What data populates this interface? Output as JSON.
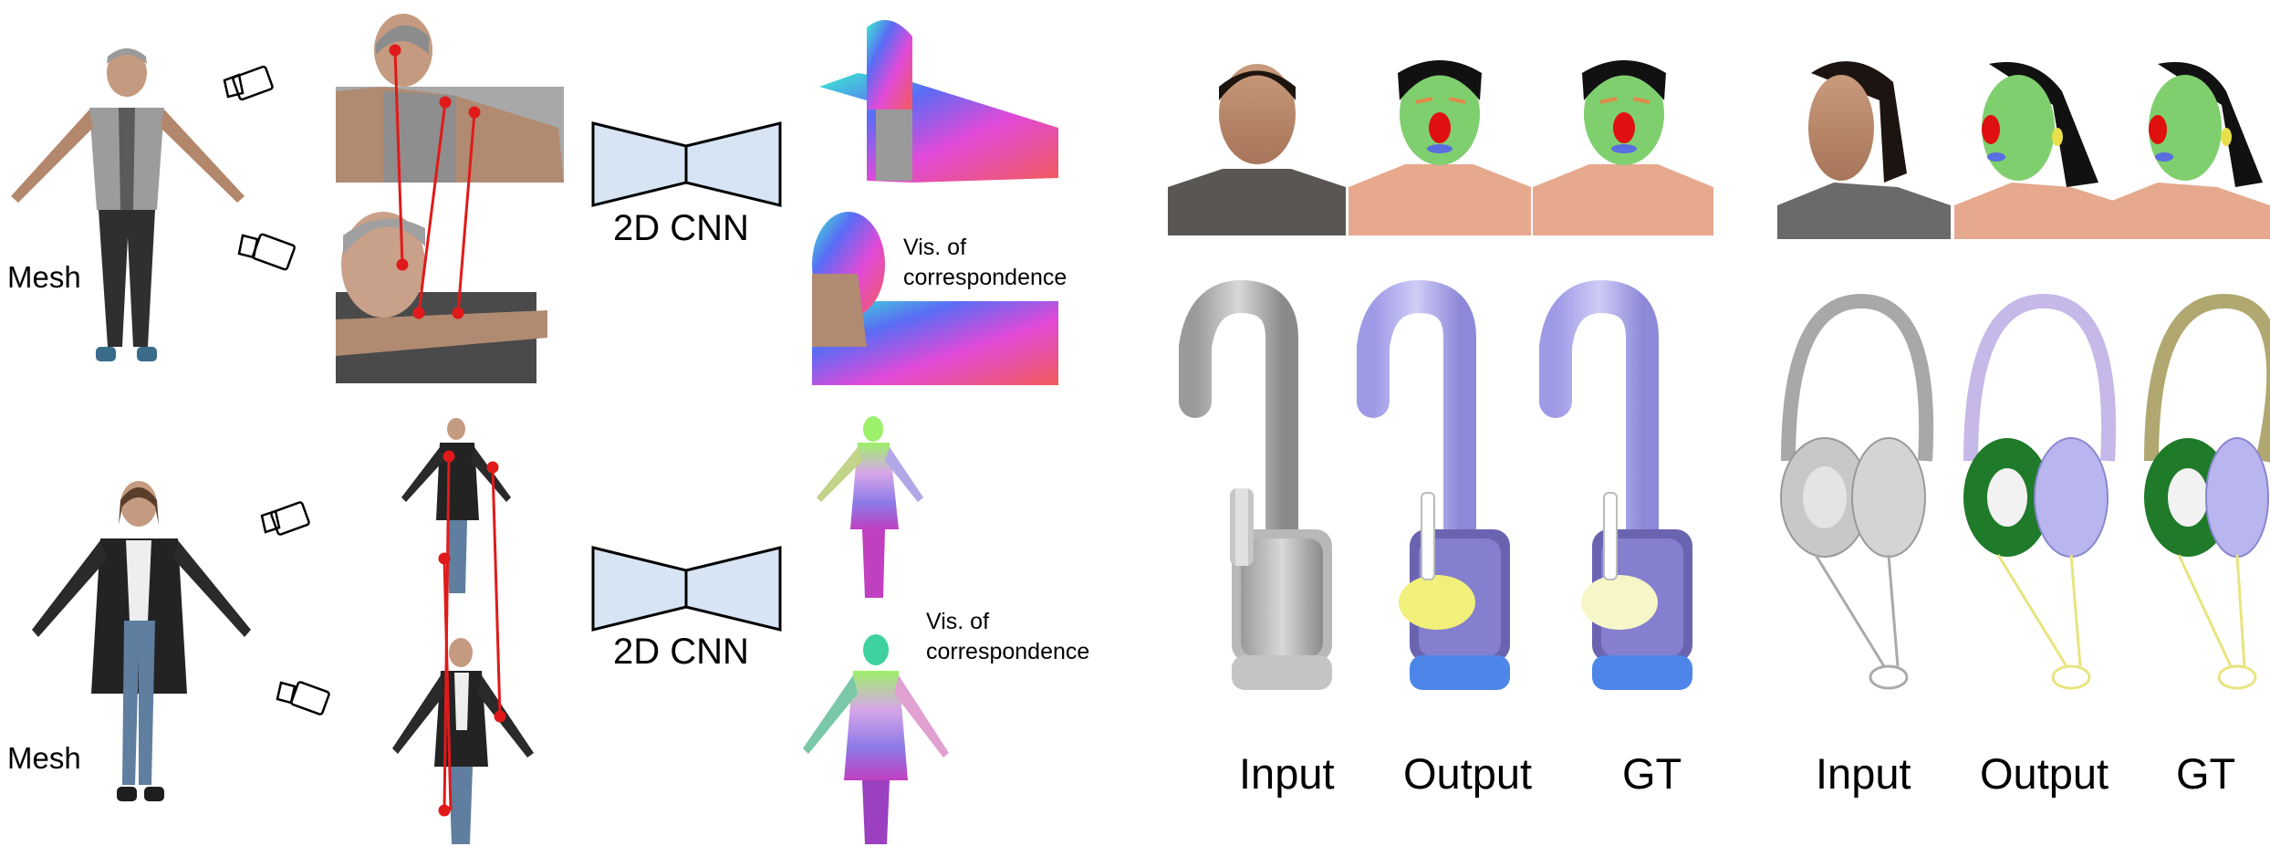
{
  "left_panel": {
    "row1": {
      "mesh_label": "Mesh",
      "network_label": "2D CNN",
      "vis_label": "Vis. of correspondence"
    },
    "row2": {
      "mesh_label": "Mesh",
      "network_label": "2D CNN",
      "vis_label": "Vis. of correspondence"
    }
  },
  "right_panel": {
    "group1": {
      "column_labels": [
        "Input",
        "Output",
        "GT"
      ]
    },
    "group2": {
      "column_labels": [
        "Input",
        "Output",
        "GT"
      ]
    }
  },
  "colors": {
    "cnn_fill": "#d6e4f3",
    "correspondence_line": "#e01a1a",
    "face_green": "#7fcf6e",
    "part_lavender": "#b9b6ef",
    "part_green": "#1f7a2a",
    "part_yellow": "#f0f07a",
    "part_blue": "#4d86e8",
    "neutral_gray": "#c8c8c8"
  }
}
